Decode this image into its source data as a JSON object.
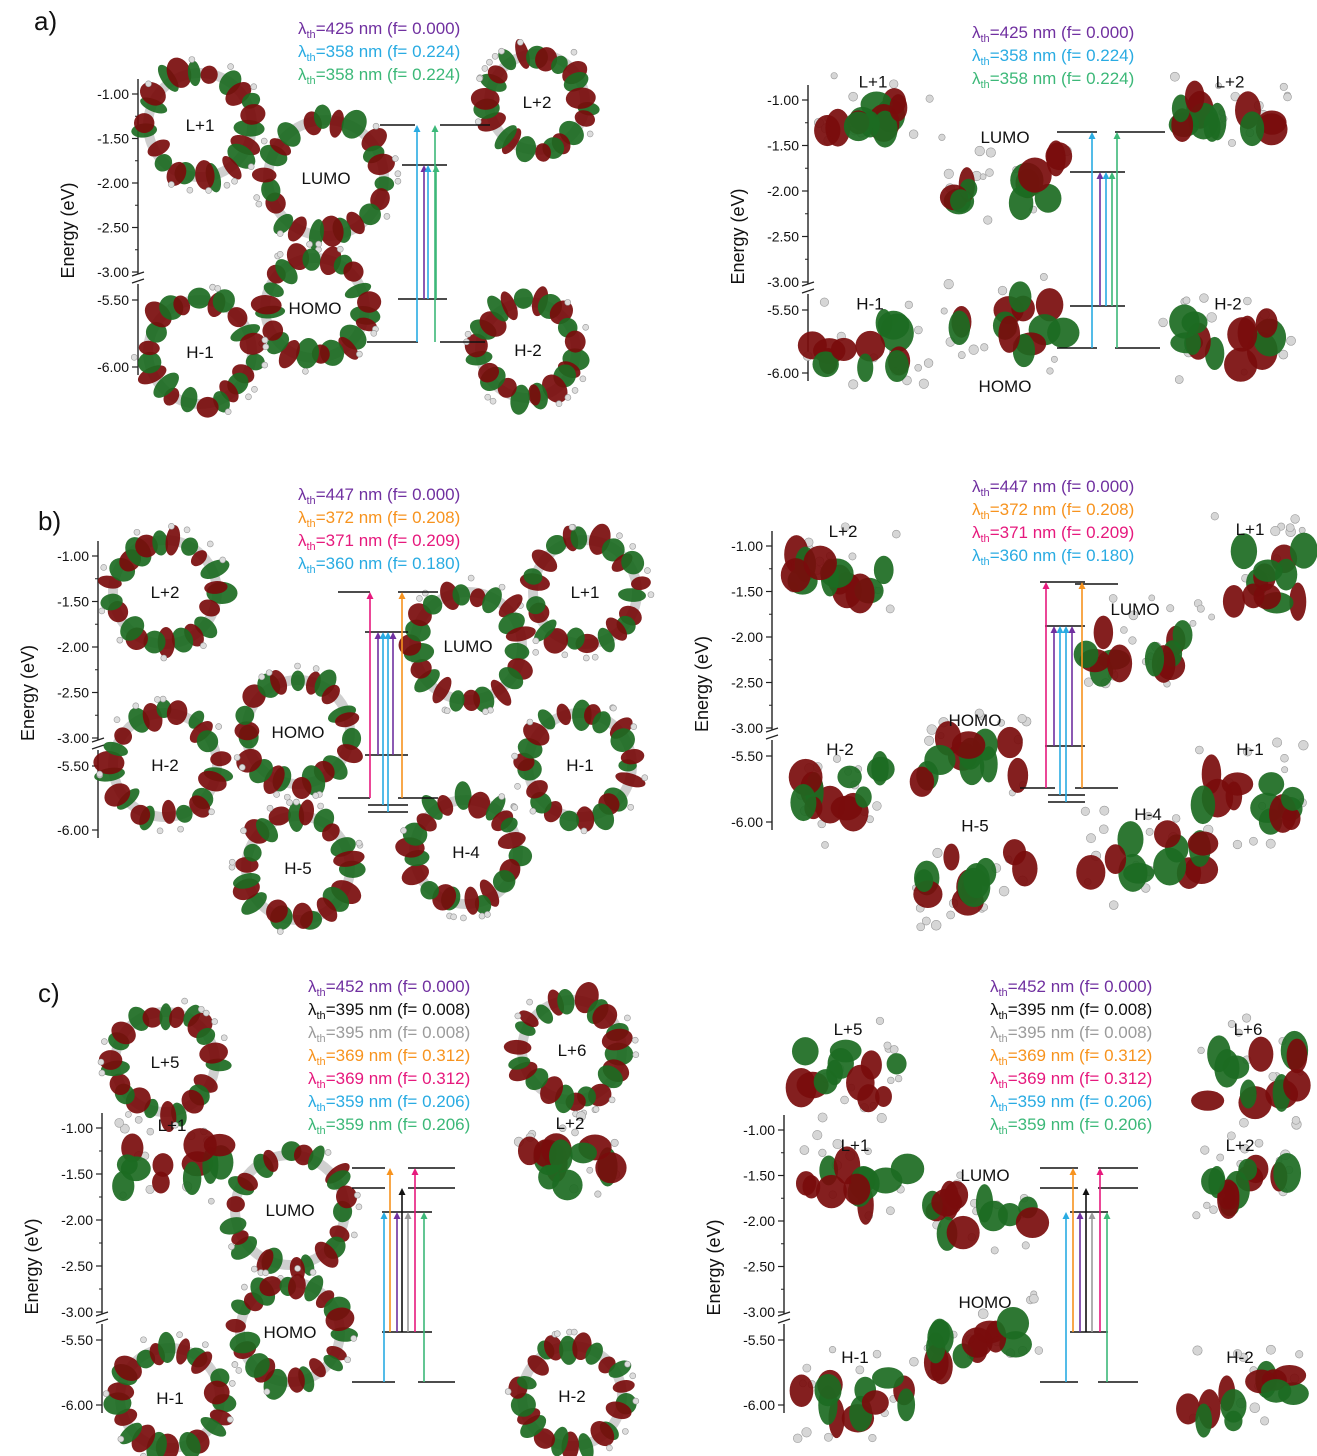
{
  "colors": {
    "purple": "#7030a0",
    "blue": "#29abe2",
    "green": "#3cb878",
    "orange": "#f7931e",
    "magenta": "#e6197d",
    "black": "#111111",
    "grey": "#9b9b9b",
    "lobe_red": "#7a0c0c",
    "lobe_green": "#1c6b22"
  },
  "axis": {
    "title": "Energy (eV)",
    "ticks": [
      "-1.00",
      "-1.50",
      "-2.00",
      "-2.50",
      "-3.00",
      "-5.50",
      "-6.00"
    ]
  },
  "panels": [
    {
      "letter": "a)",
      "transitions": [
        {
          "lambda": "425",
          "f": "0.000",
          "color": "purple"
        },
        {
          "lambda": "358",
          "f": "0.224",
          "color": "blue"
        },
        {
          "lambda": "358",
          "f": "0.224",
          "color": "green"
        }
      ],
      "left_orbitals": [
        "L+1",
        "LUMO",
        "L+2",
        "HOMO",
        "H-1",
        "H-2"
      ],
      "right_orbitals": [
        "L+1",
        "LUMO",
        "L+2",
        "H-1",
        "HOMO",
        "H-2"
      ]
    },
    {
      "letter": "b)",
      "transitions": [
        {
          "lambda": "447",
          "f": "0.000",
          "color": "purple"
        },
        {
          "lambda": "372",
          "f": "0.208",
          "color": "orange"
        },
        {
          "lambda": "371",
          "f": "0.209",
          "color": "magenta"
        },
        {
          "lambda": "360",
          "f": "0.180",
          "color": "blue"
        }
      ],
      "left_orbitals": [
        "L+2",
        "L+1",
        "LUMO",
        "HOMO",
        "H-2",
        "H-1",
        "H-5",
        "H-4"
      ],
      "right_orbitals": [
        "L+2",
        "L+1",
        "LUMO",
        "HOMO",
        "H-2",
        "H-1",
        "H-5",
        "H-4"
      ]
    },
    {
      "letter": "c)",
      "transitions": [
        {
          "lambda": "452",
          "f": "0.000",
          "color": "purple"
        },
        {
          "lambda": "395",
          "f": "0.008",
          "color": "black"
        },
        {
          "lambda": "395",
          "f": "0.008",
          "color": "grey"
        },
        {
          "lambda": "369",
          "f": "0.312",
          "color": "orange"
        },
        {
          "lambda": "369",
          "f": "0.312",
          "color": "magenta"
        },
        {
          "lambda": "359",
          "f": "0.206",
          "color": "blue"
        },
        {
          "lambda": "359",
          "f": "0.206",
          "color": "green"
        }
      ],
      "left_orbitals": [
        "L+5",
        "L+6",
        "L+1",
        "L+2",
        "LUMO",
        "HOMO",
        "H-1",
        "H-2"
      ],
      "right_orbitals": [
        "L+5",
        "L+6",
        "L+1",
        "L+2",
        "LUMO",
        "HOMO",
        "H-1",
        "H-2"
      ]
    }
  ]
}
